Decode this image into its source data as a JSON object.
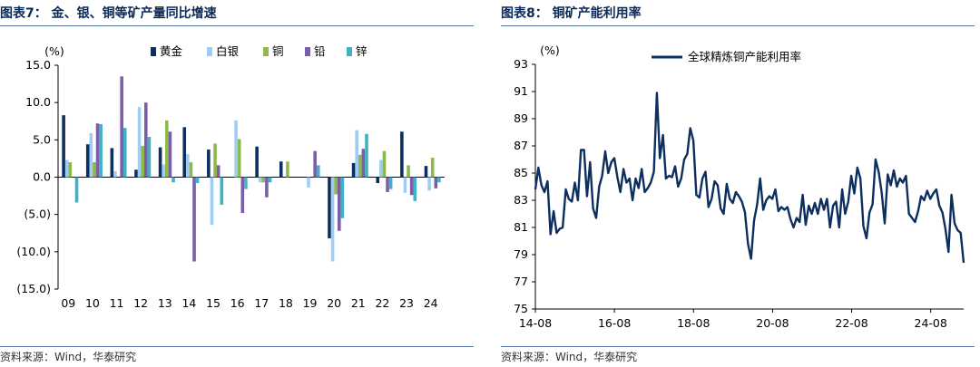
{
  "left": {
    "title": "图表7：  金、银、铜等矿产量同比增速",
    "source": "资料来源：Wind，华泰研究",
    "unit_label": "(%)"
  },
  "right": {
    "title": "图表8：  铜矿产能利用率",
    "source": "资料来源：Wind，华泰研究",
    "unit_label": "(%)"
  },
  "chart_data": [
    {
      "type": "bar",
      "title": "金、银、铜等矿产量同比增速",
      "ylabel": "(%)",
      "ylim": [
        -15,
        15
      ],
      "yticks": [
        15,
        10,
        5,
        0,
        -5,
        -10,
        -15
      ],
      "ytick_labels": [
        "15.0",
        "10.0",
        "5.0",
        "0.0",
        "(5.0)",
        "(10.0)",
        "(15.0)"
      ],
      "categories": [
        "09",
        "10",
        "11",
        "12",
        "13",
        "14",
        "15",
        "16",
        "17",
        "18",
        "19",
        "20",
        "21",
        "22",
        "23",
        "24"
      ],
      "legend_position": "top",
      "series": [
        {
          "name": "黄金",
          "color": "#0d2f60",
          "values": [
            8.3,
            4.4,
            3.9,
            1.0,
            4.0,
            6.7,
            3.7,
            0.0,
            4.1,
            2.1,
            0.0,
            -8.2,
            1.9,
            -0.8,
            6.1,
            1.5
          ]
        },
        {
          "name": "白银",
          "color": "#9fcdf4",
          "values": [
            2.3,
            5.9,
            0.8,
            9.4,
            1.7,
            3.1,
            -6.4,
            7.6,
            -0.7,
            0.0,
            -1.4,
            -11.3,
            6.3,
            2.3,
            -2.1,
            -1.8
          ]
        },
        {
          "name": "铜",
          "color": "#8db94a",
          "values": [
            2.0,
            2.0,
            0.0,
            4.2,
            7.6,
            2.0,
            4.5,
            5.1,
            -0.7,
            2.1,
            0.0,
            -2.3,
            3.0,
            3.5,
            1.6,
            2.6
          ]
        },
        {
          "name": "铅",
          "color": "#7b5ea8",
          "values": [
            0.0,
            7.2,
            13.5,
            10.0,
            6.1,
            -11.3,
            1.6,
            -4.8,
            -2.7,
            0.0,
            3.5,
            -7.2,
            3.8,
            -2.0,
            -2.4,
            -1.5
          ]
        },
        {
          "name": "锌",
          "color": "#3fb2c7",
          "values": [
            -3.4,
            7.1,
            6.6,
            5.4,
            -0.7,
            -0.8,
            -3.7,
            -1.6,
            -0.7,
            0.0,
            1.6,
            -5.5,
            5.8,
            -1.6,
            -3.2,
            -0.7
          ]
        }
      ]
    },
    {
      "type": "line",
      "title": "铜矿产能利用率",
      "ylabel": "(%)",
      "ylim": [
        75,
        93
      ],
      "yticks": [
        93,
        91,
        89,
        87,
        85,
        83,
        81,
        79,
        77,
        75
      ],
      "xticks": [
        "14-08",
        "16-08",
        "18-08",
        "20-08",
        "22-08",
        "24-08"
      ],
      "x_start": "2014-08",
      "x_end": "2025-06",
      "legend_position": "top",
      "series": [
        {
          "name": "全球精炼铜产能利用率",
          "color": "#0d2f60",
          "values": [
            83.8,
            85.4,
            84.1,
            83.6,
            84.4,
            80.5,
            82.2,
            80.6,
            80.9,
            81.0,
            83.8,
            83.1,
            82.9,
            84.3,
            83.0,
            86.7,
            86.7,
            83.3,
            85.8,
            82.4,
            81.7,
            84.0,
            84.8,
            86.6,
            85.0,
            85.8,
            86.1,
            84.7,
            83.6,
            85.3,
            84.3,
            84.6,
            83.0,
            84.6,
            83.9,
            85.3,
            83.6,
            83.9,
            84.3,
            85.1,
            90.9,
            86.1,
            87.8,
            84.6,
            84.8,
            84.7,
            85.5,
            84.0,
            84.6,
            86.0,
            86.4,
            88.3,
            87.4,
            83.4,
            83.2,
            84.6,
            85.1,
            82.5,
            83.1,
            84.4,
            84.1,
            82.4,
            82.0,
            84.2,
            83.1,
            82.8,
            83.6,
            83.3,
            82.9,
            82.1,
            79.8,
            78.7,
            81.5,
            82.7,
            84.6,
            82.3,
            83.0,
            83.3,
            83.1,
            83.8,
            82.2,
            82.5,
            82.3,
            82.5,
            81.6,
            81.0,
            81.7,
            81.4,
            83.4,
            81.2,
            82.6,
            82.0,
            82.8,
            82.0,
            83.1,
            82.3,
            83.1,
            81.0,
            82.6,
            82.9,
            81.0,
            83.8,
            82.0,
            82.9,
            84.8,
            83.5,
            85.4,
            84.6,
            81.1,
            80.2,
            82.1,
            82.7,
            86.0,
            85.1,
            83.6,
            81.3,
            84.9,
            84.1,
            85.2,
            84.0,
            84.6,
            84.3,
            84.8,
            82.0,
            81.7,
            81.4,
            82.2,
            83.3,
            83.0,
            83.7,
            83.1,
            83.5,
            83.8,
            82.6,
            82.1,
            80.9,
            79.2,
            83.4,
            81.3,
            80.8,
            80.6,
            78.4
          ]
        }
      ]
    }
  ]
}
